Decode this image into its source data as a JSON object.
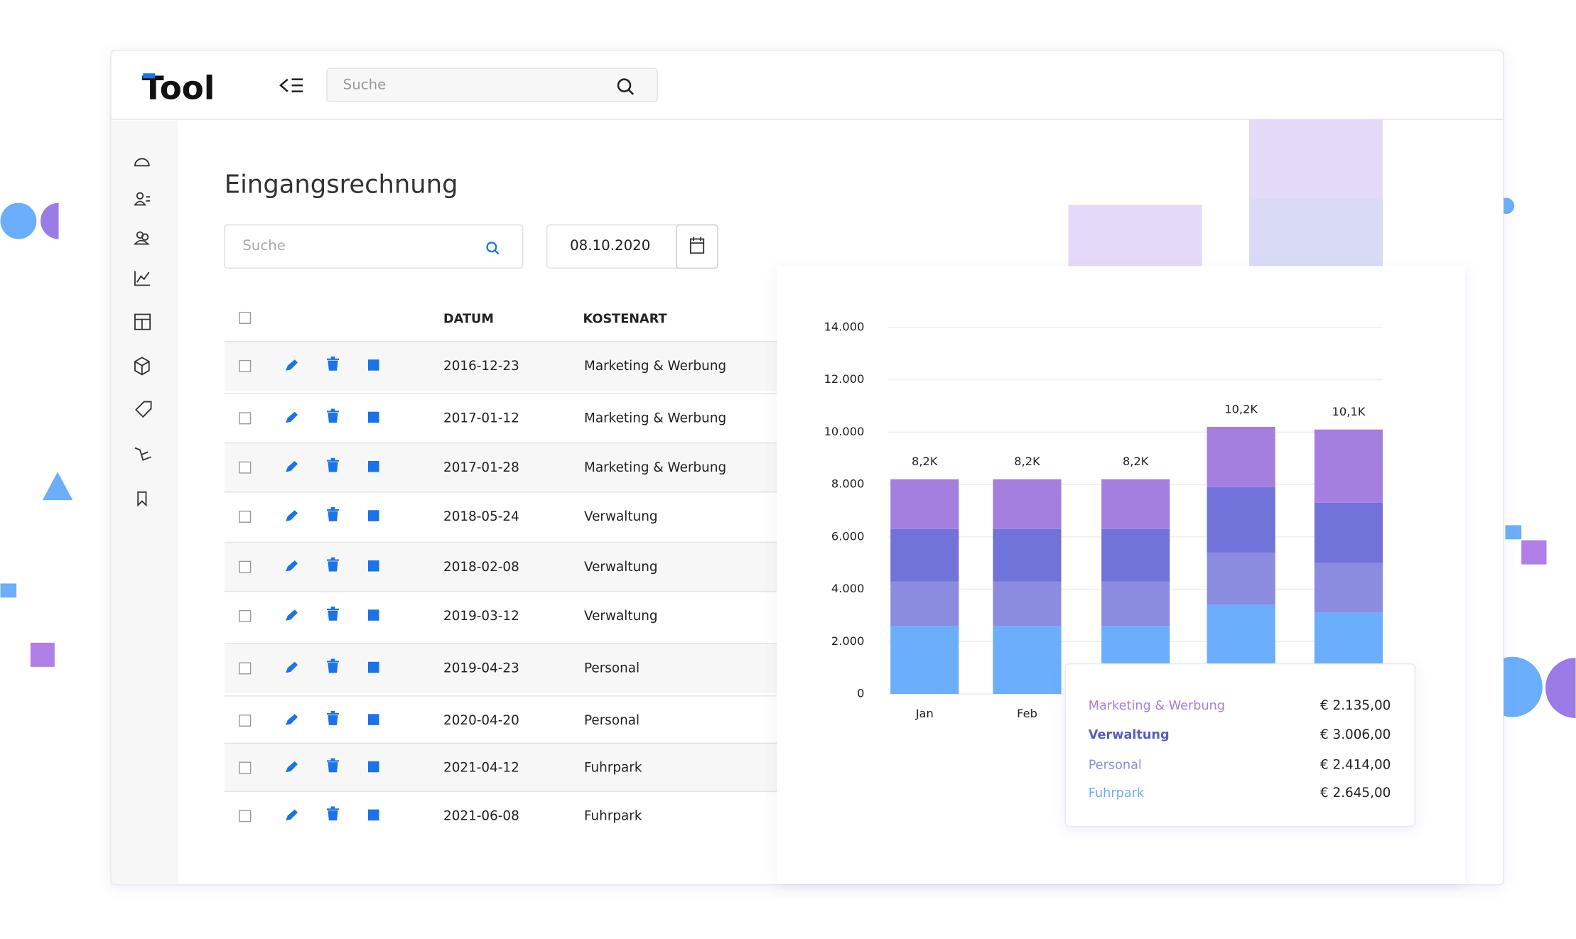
{
  "header": {
    "logo": "Tool",
    "search_placeholder": "Suche"
  },
  "page": {
    "title": "Eingangsrechnung",
    "search_placeholder": "Suche",
    "date": "08.10.2020"
  },
  "table": {
    "columns": [
      "DATUM",
      "KOSTENART"
    ],
    "rows": [
      [
        "2016-12-23",
        "Marketing & Werbung"
      ],
      [
        "2017-01-12",
        "Marketing & Werbung"
      ],
      [
        "2017-01-28",
        "Marketing & Werbung"
      ],
      [
        "2018-05-24",
        "Verwaltung"
      ],
      [
        "2018-02-08",
        "Verwaltung"
      ],
      [
        "2019-03-12",
        "Verwaltung"
      ],
      [
        "2019-04-23",
        "Personal"
      ],
      [
        "2020-04-20",
        "Personal"
      ],
      [
        "2021-04-12",
        "Fuhrpark"
      ],
      [
        "2021-06-08",
        "Fuhrpark"
      ]
    ]
  },
  "tooltip": {
    "rows": [
      {
        "name": "Marketing & Werbung",
        "amount": "€ 2.135,00",
        "color": "#a57fe0"
      },
      {
        "name": "Verwaltung",
        "amount": "€ 3.006,00",
        "color": "#5a5cc7"
      },
      {
        "name": "Personal",
        "amount": "€ 2.414,00",
        "color": "#8b8ce0"
      },
      {
        "name": "Fuhrpark",
        "amount": "€ 2.645,00",
        "color": "#6aaefc"
      }
    ]
  },
  "chart_data": {
    "type": "bar",
    "stacked": true,
    "categories": [
      "Jan",
      "Feb",
      null,
      null,
      null
    ],
    "series": [
      {
        "name": "Fuhrpark",
        "color": "#6aaefc",
        "values": [
          2600,
          2600,
          2600,
          3400,
          3100
        ]
      },
      {
        "name": "Personal",
        "color": "#8b8ce0",
        "values": [
          1700,
          1700,
          1700,
          2000,
          1900
        ]
      },
      {
        "name": "Verwaltung",
        "color": "#7173d8",
        "values": [
          2000,
          2000,
          2000,
          2500,
          2300
        ]
      },
      {
        "name": "Marketing & Werbung",
        "color": "#a57fe0",
        "values": [
          1900,
          1900,
          1900,
          2300,
          2800
        ]
      }
    ],
    "totals": [
      8200,
      8200,
      8200,
      10200,
      10100
    ],
    "total_labels": [
      "8,2K",
      "8,2K",
      "8,2K",
      "10,2K",
      "10,1K"
    ],
    "ylim": [
      0,
      14000
    ],
    "yticks": [
      0,
      {
        "value": 2000,
        "label": "2.000"
      },
      {
        "value": 4000,
        "label": "4.000"
      },
      {
        "value": 6000,
        "label": "6.000"
      },
      {
        "value": 8000,
        "label": "8.000"
      },
      {
        "value": 10000,
        "label": "10.000"
      },
      {
        "value": 12000,
        "label": "12.000"
      },
      {
        "value": 14000,
        "label": "14.000"
      }
    ],
    "grid": true
  }
}
